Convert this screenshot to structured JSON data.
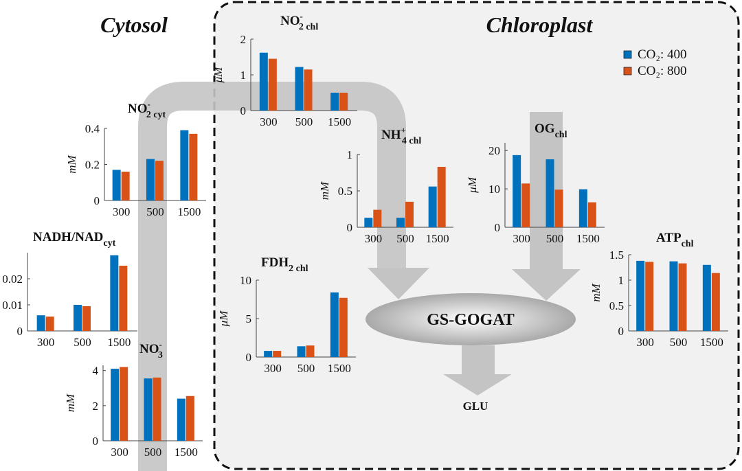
{
  "labels": {
    "cytosol": "Cytosol",
    "chloroplast": "Chloroplast",
    "enzyme": "GS-GOGAT",
    "product": "GLU"
  },
  "legend": {
    "entries": [
      {
        "name": "CO₂: 400",
        "color": "#0072bd"
      },
      {
        "name": "CO₂: 800",
        "color": "#d95319"
      }
    ]
  },
  "chart_data": [
    {
      "type": "bar",
      "title": {
        "base": "NO",
        "sup": "-",
        "sub": "2 chl"
      },
      "ylabel": "μM",
      "categories": [
        "300",
        "500",
        "1500"
      ],
      "series": [
        {
          "color": "#0072bd",
          "values": [
            1.62,
            1.22,
            0.5
          ]
        },
        {
          "color": "#d95319",
          "values": [
            1.45,
            1.15,
            0.5
          ]
        }
      ],
      "ylim": [
        0,
        2
      ],
      "yticks": [
        0,
        1,
        2
      ]
    },
    {
      "type": "bar",
      "title": {
        "base": "NO",
        "sup": "-",
        "sub": "2 cyt"
      },
      "ylabel": "mM",
      "categories": [
        "300",
        "500",
        "1500"
      ],
      "series": [
        {
          "color": "#0072bd",
          "values": [
            0.17,
            0.23,
            0.39
          ]
        },
        {
          "color": "#d95319",
          "values": [
            0.16,
            0.22,
            0.37
          ]
        }
      ],
      "ylim": [
        0,
        0.4
      ],
      "yticks": [
        0,
        0.2,
        0.4
      ]
    },
    {
      "type": "bar",
      "title": {
        "base": "NADH/NAD",
        "sub": "cyt"
      },
      "categories": [
        "300",
        "500",
        "1500"
      ],
      "series": [
        {
          "color": "#0072bd",
          "values": [
            0.006,
            0.01,
            0.029
          ]
        },
        {
          "color": "#d95319",
          "values": [
            0.0055,
            0.0095,
            0.025
          ]
        }
      ],
      "ylim": [
        0,
        0.03
      ],
      "yticks": [
        0,
        0.01,
        0.02
      ]
    },
    {
      "type": "bar",
      "title": {
        "base": "NO",
        "sup": "-",
        "sub": "3"
      },
      "ylabel": "mM",
      "categories": [
        "300",
        "500",
        "1500"
      ],
      "series": [
        {
          "color": "#0072bd",
          "values": [
            4.1,
            3.55,
            2.4
          ]
        },
        {
          "color": "#d95319",
          "values": [
            4.2,
            3.6,
            2.55
          ]
        }
      ],
      "ylim": [
        0,
        4.3
      ],
      "yticks": [
        0,
        2,
        4
      ]
    },
    {
      "type": "bar",
      "title": {
        "base": "NH",
        "sup": "+",
        "sub": "4 chl"
      },
      "ylabel": "mM",
      "categories": [
        "300",
        "500",
        "1500"
      ],
      "series": [
        {
          "color": "#0072bd",
          "values": [
            0.13,
            0.13,
            0.56
          ]
        },
        {
          "color": "#d95319",
          "values": [
            0.24,
            0.35,
            0.83
          ]
        }
      ],
      "ylim": [
        0,
        1
      ],
      "yticks": [
        0,
        0.5,
        1
      ]
    },
    {
      "type": "bar",
      "title": {
        "base": "OG",
        "sub": "chl"
      },
      "ylabel": "μM",
      "categories": [
        "300",
        "500",
        "1500"
      ],
      "series": [
        {
          "color": "#0072bd",
          "values": [
            18.8,
            17.7,
            9.9
          ]
        },
        {
          "color": "#d95319",
          "values": [
            11.4,
            9.8,
            6.5
          ]
        }
      ],
      "ylim": [
        0,
        22
      ],
      "yticks": [
        0,
        10,
        20
      ]
    },
    {
      "type": "bar",
      "title": {
        "base": "ATP",
        "sub": "chl"
      },
      "ylabel": "mM",
      "categories": [
        "300",
        "500",
        "1500"
      ],
      "series": [
        {
          "color": "#0072bd",
          "values": [
            1.38,
            1.37,
            1.3
          ]
        },
        {
          "color": "#d95319",
          "values": [
            1.36,
            1.33,
            1.14
          ]
        }
      ],
      "ylim": [
        0,
        1.5
      ],
      "yticks": [
        0,
        0.5,
        1,
        1.5
      ]
    },
    {
      "type": "bar",
      "title": {
        "base": "FDH",
        "sub": "2 chl"
      },
      "ylabel": "μM",
      "categories": [
        "300",
        "500",
        "1500"
      ],
      "series": [
        {
          "color": "#0072bd",
          "values": [
            0.8,
            1.4,
            8.4
          ]
        },
        {
          "color": "#d95319",
          "values": [
            0.8,
            1.5,
            7.7
          ]
        }
      ],
      "ylim": [
        0,
        10
      ],
      "yticks": [
        0,
        5,
        10
      ]
    }
  ]
}
